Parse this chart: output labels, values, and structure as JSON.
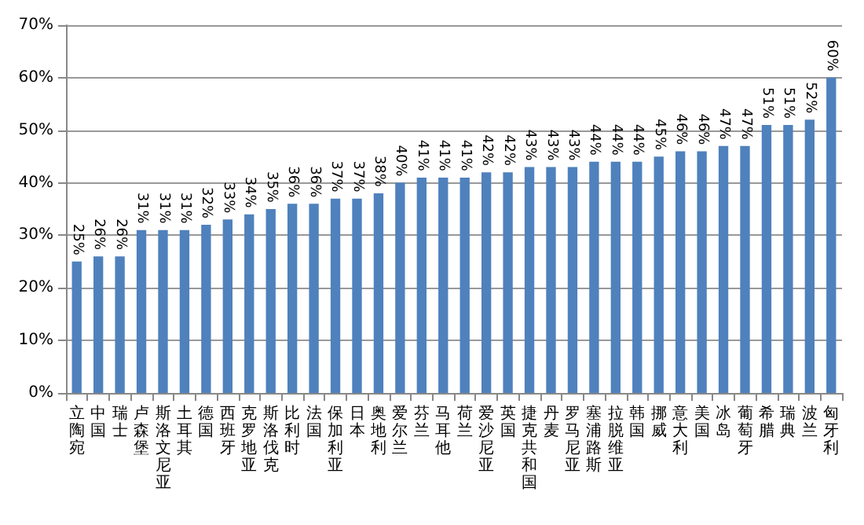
{
  "chart_data": {
    "type": "bar",
    "categories": [
      "立陶宛",
      "中国",
      "瑞士",
      "卢森堡",
      "斯洛文尼亚",
      "土耳其",
      "德国",
      "西班牙",
      "克罗地亚",
      "斯洛伐克",
      "比利时",
      "法国",
      "保加利亚",
      "日本",
      "奥地利",
      "爱尔兰",
      "芬兰",
      "马耳他",
      "荷兰",
      "爱沙尼亚",
      "英国",
      "捷克共和国",
      "丹麦",
      "罗马尼亚",
      "塞浦路斯",
      "拉脱维亚",
      "韩国",
      "挪威",
      "意大利",
      "美国",
      "冰岛",
      "葡萄牙",
      "希腊",
      "瑞典",
      "波兰",
      "匈牙利"
    ],
    "values": [
      25,
      26,
      26,
      31,
      31,
      31,
      32,
      33,
      34,
      35,
      36,
      36,
      37,
      37,
      38,
      40,
      41,
      41,
      41,
      42,
      42,
      43,
      43,
      43,
      44,
      44,
      44,
      45,
      46,
      46,
      47,
      47,
      51,
      51,
      52,
      60
    ],
    "value_labels": [
      "25%",
      "26%",
      "26%",
      "31%",
      "31%",
      "31%",
      "32%",
      "33%",
      "34%",
      "35%",
      "36%",
      "36%",
      "37%",
      "37%",
      "38%",
      "40%",
      "41%",
      "41%",
      "41%",
      "42%",
      "42%",
      "43%",
      "43%",
      "43%",
      "44%",
      "44%",
      "44%",
      "45%",
      "46%",
      "46%",
      "47%",
      "47%",
      "51%",
      "51%",
      "52%",
      "60%"
    ],
    "color": "#4f81bd",
    "ylim": [
      0,
      70
    ],
    "yticks": [
      {
        "value": 0,
        "label": "0%"
      },
      {
        "value": 10,
        "label": "10%"
      },
      {
        "value": 20,
        "label": "20%"
      },
      {
        "value": 30,
        "label": "30%"
      },
      {
        "value": 40,
        "label": "40%"
      },
      {
        "value": 50,
        "label": "50%"
      },
      {
        "value": 60,
        "label": "60%"
      },
      {
        "value": 70,
        "label": "70%"
      }
    ],
    "grid": "y"
  }
}
